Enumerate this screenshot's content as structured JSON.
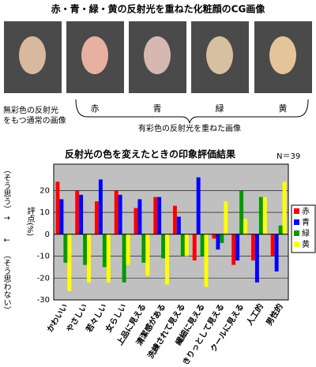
{
  "header": {
    "title": "赤・青・緑・黄の反射光を重ねた化粧顔のCG画像"
  },
  "photo_labels": {
    "plain_line1": "無彩色の反射光",
    "plain_line2": "をもつ通常の画像",
    "colors": [
      "赤",
      "青",
      "緑",
      "黄"
    ],
    "colored": "有彩色の反射光を重ねた画像"
  },
  "axis_notes": {
    "top": "（そう思う）",
    "up": "↑",
    "down": "↓",
    "bottom": "（そう思わない）"
  },
  "chart_data": {
    "type": "bar",
    "title": "反射光の色を変えたときの印象評価結果",
    "subtitle": "N＝39",
    "y_label": "評点(%)",
    "categories": [
      "かわいい",
      "やさしい",
      "若々しい",
      "女らしい",
      "上品に見える",
      "清潔感がある",
      "洗練されて見える",
      "繊細に見える",
      "きりっとして見える",
      "クールに見える",
      "人工的",
      "男性的"
    ],
    "series": [
      {
        "name": "赤",
        "color": "#ff0000",
        "values": [
          24,
          20,
          15,
          20,
          12,
          17,
          13,
          -12,
          -2,
          -14,
          -12,
          -10
        ]
      },
      {
        "name": "青",
        "color": "#0000ff",
        "values": [
          16,
          18,
          25,
          18,
          16,
          17,
          8,
          26,
          -7,
          -12,
          -22,
          -17
        ]
      },
      {
        "name": "緑",
        "color": "#009900",
        "values": [
          -13,
          -14,
          -15,
          -22,
          -13,
          -11,
          -10,
          -10,
          -4,
          20,
          17,
          4
        ]
      },
      {
        "name": "黄",
        "color": "#ffff00",
        "values": [
          -26,
          -22,
          -22,
          -14,
          -19,
          -23,
          -10,
          -24,
          15,
          7,
          17,
          24
        ]
      }
    ],
    "ylim": [
      -30,
      32
    ],
    "yticks": [
      -30,
      -20,
      -10,
      0,
      10,
      20
    ],
    "grid": true,
    "legend": "right"
  }
}
